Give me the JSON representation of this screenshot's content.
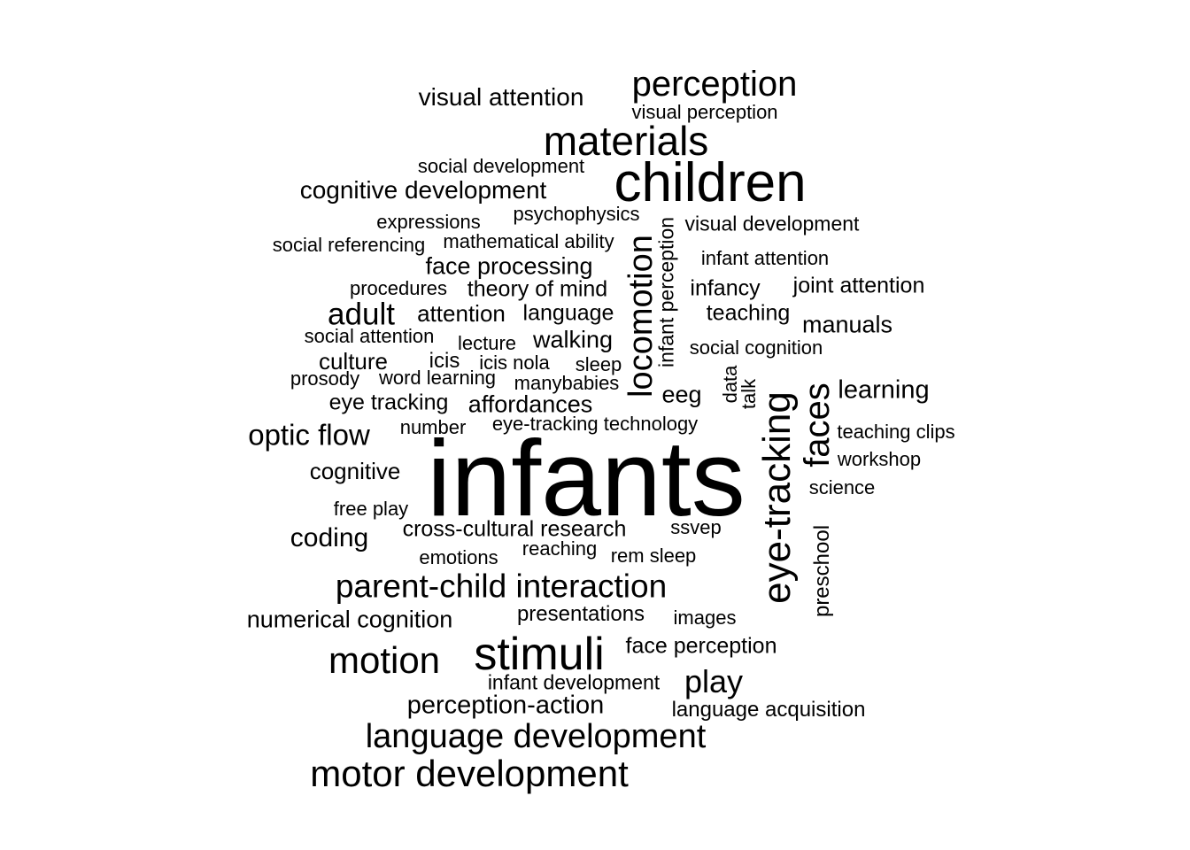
{
  "words": [
    {
      "text": "infants"
    },
    {
      "text": "children"
    },
    {
      "text": "eye-tracking"
    },
    {
      "text": "materials"
    },
    {
      "text": "stimuli"
    },
    {
      "text": "perception"
    },
    {
      "text": "motor development"
    },
    {
      "text": "language development"
    },
    {
      "text": "parent-child interaction"
    },
    {
      "text": "motion"
    },
    {
      "text": "locomotion"
    },
    {
      "text": "faces"
    },
    {
      "text": "optic flow"
    },
    {
      "text": "adult"
    },
    {
      "text": "play"
    },
    {
      "text": "perception-action"
    },
    {
      "text": "learning"
    },
    {
      "text": "cognitive development"
    },
    {
      "text": "visual attention"
    },
    {
      "text": "coding"
    },
    {
      "text": "face processing"
    },
    {
      "text": "numerical cognition"
    },
    {
      "text": "cross-cultural research"
    },
    {
      "text": "affordances"
    },
    {
      "text": "manuals"
    },
    {
      "text": "walking"
    },
    {
      "text": "attention"
    },
    {
      "text": "language"
    },
    {
      "text": "theory of mind"
    },
    {
      "text": "joint attention"
    },
    {
      "text": "face perception"
    },
    {
      "text": "cognitive"
    },
    {
      "text": "culture"
    },
    {
      "text": "eye tracking"
    },
    {
      "text": "infancy"
    },
    {
      "text": "teaching"
    },
    {
      "text": "presentations"
    },
    {
      "text": "language acquisition"
    },
    {
      "text": "visual development"
    },
    {
      "text": "infant perception"
    },
    {
      "text": "eeg"
    },
    {
      "text": "preschool"
    },
    {
      "text": "icis"
    },
    {
      "text": "infant development"
    },
    {
      "text": "social development"
    },
    {
      "text": "visual perception"
    },
    {
      "text": "psychophysics"
    },
    {
      "text": "expressions"
    },
    {
      "text": "social referencing"
    },
    {
      "text": "mathematical ability"
    },
    {
      "text": "infant attention"
    },
    {
      "text": "procedures"
    },
    {
      "text": "social attention"
    },
    {
      "text": "lecture"
    },
    {
      "text": "social cognition"
    },
    {
      "text": "icis nola"
    },
    {
      "text": "sleep"
    },
    {
      "text": "prosody"
    },
    {
      "text": "word learning"
    },
    {
      "text": "manybabies"
    },
    {
      "text": "data"
    },
    {
      "text": "talk"
    },
    {
      "text": "number"
    },
    {
      "text": "eye-tracking technology"
    },
    {
      "text": "teaching clips"
    },
    {
      "text": "workshop"
    },
    {
      "text": "science"
    },
    {
      "text": "free play"
    },
    {
      "text": "ssvep"
    },
    {
      "text": "emotions"
    },
    {
      "text": "reaching"
    },
    {
      "text": "rem sleep"
    },
    {
      "text": "images"
    }
  ]
}
